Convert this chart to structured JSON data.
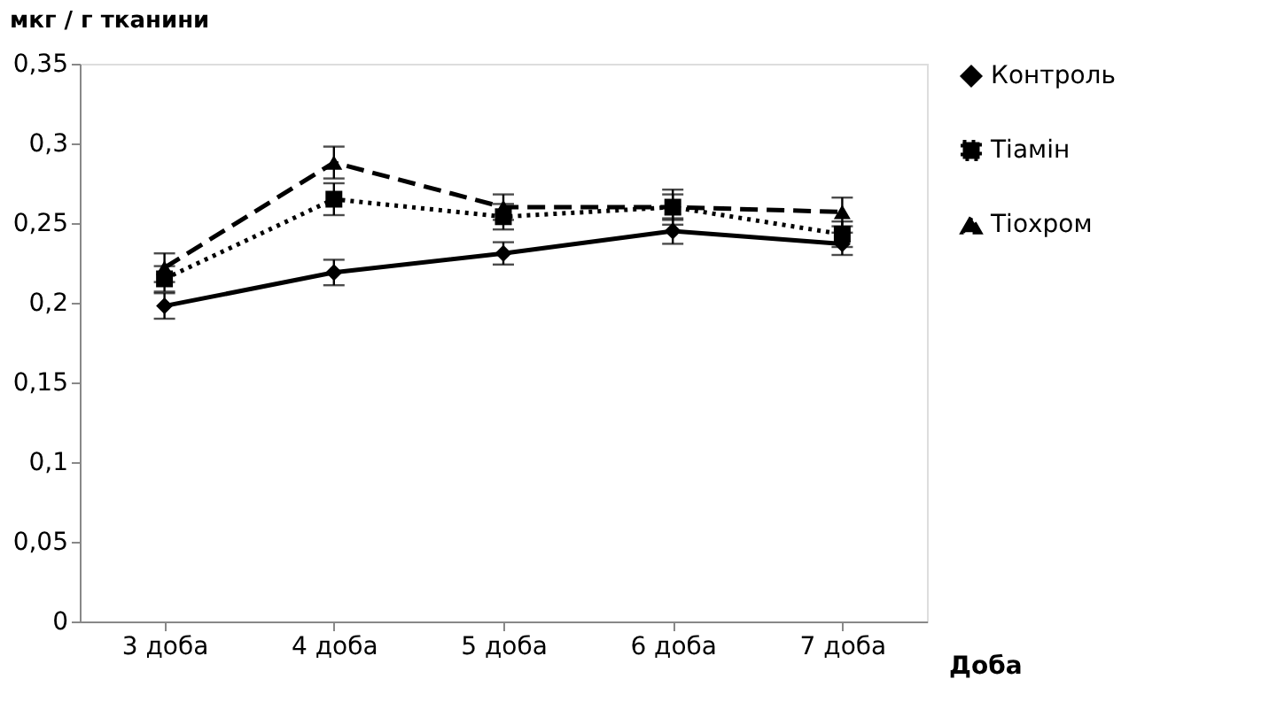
{
  "chart_data": {
    "type": "line",
    "xlabel": "Доба",
    "ylabel": "мкг / г тканини",
    "categories": [
      "3 доба",
      "4 доба",
      "5 доба",
      "6 доба",
      "7 доба"
    ],
    "ylim": [
      0,
      0.35
    ],
    "yticks": [
      0,
      {
        "value": 0.05,
        "label": "0,05"
      },
      {
        "value": 0.1,
        "label": "0,1"
      },
      {
        "value": 0.15,
        "label": "0,15"
      },
      {
        "value": 0.2,
        "label": "0,2"
      },
      {
        "value": 0.25,
        "label": "0,25"
      },
      {
        "value": 0.3,
        "label": "0,3"
      },
      {
        "value": 0.35,
        "label": "0,35"
      }
    ],
    "grid": false,
    "legend": "right",
    "series": [
      {
        "name": "Контроль",
        "color": "#000000",
        "marker": "diamond",
        "line_style": "solid",
        "values": [
          0.198,
          0.219,
          0.231,
          0.245,
          0.237
        ],
        "errors": [
          0.008,
          0.008,
          0.007,
          0.008,
          0.007
        ]
      },
      {
        "name": "Тіамін",
        "color": "#000000",
        "marker": "square",
        "line_style": "dotted",
        "values": [
          0.215,
          0.265,
          0.254,
          0.26,
          0.243
        ],
        "errors": [
          0.008,
          0.01,
          0.008,
          0.011,
          0.008
        ]
      },
      {
        "name": "Тіохром",
        "color": "#000000",
        "marker": "triangle",
        "line_style": "dashed",
        "values": [
          0.222,
          0.288,
          0.26,
          0.26,
          0.257
        ],
        "errors": [
          0.009,
          0.01,
          0.008,
          0.008,
          0.009
        ]
      }
    ]
  }
}
